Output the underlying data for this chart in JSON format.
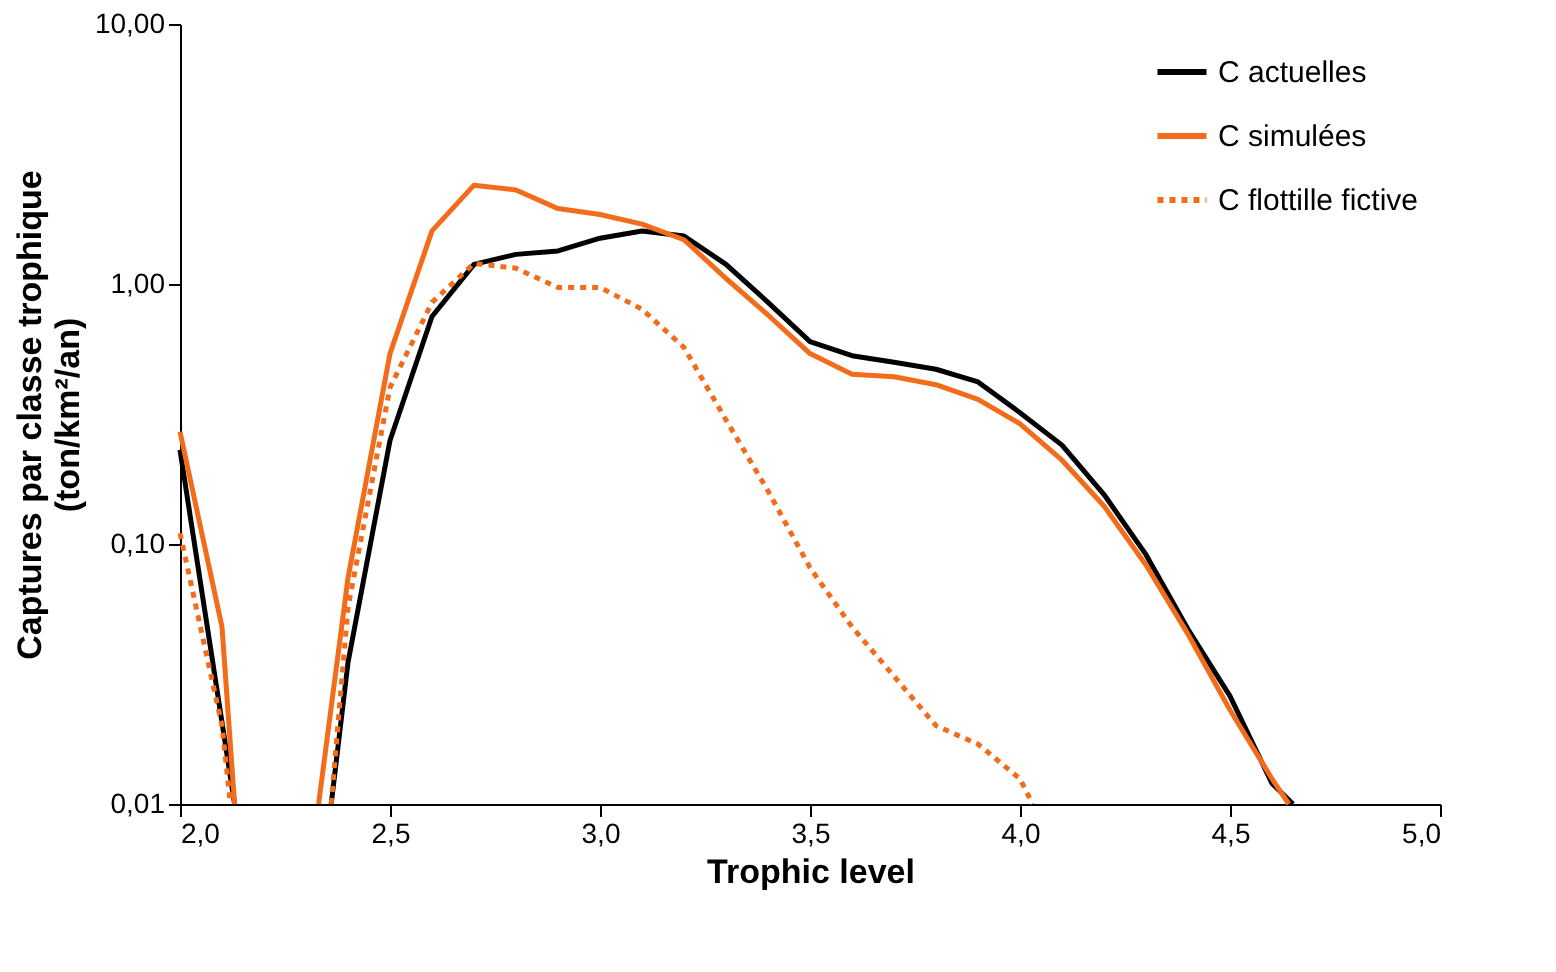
{
  "chart_data": {
    "type": "line",
    "xlabel": "Trophic level",
    "ylabel": "Captures par classe trophique\n(ton/km²/an)",
    "log": "y",
    "grid": false,
    "legend": "top right",
    "marker": "none",
    "xlim": [
      2.0,
      5.0
    ],
    "xticks": [
      {
        "value": 2.0,
        "label": "2,0"
      },
      {
        "value": 2.5,
        "label": "2,5"
      },
      {
        "value": 3.0,
        "label": "3,0"
      },
      {
        "value": 3.5,
        "label": "3,5"
      },
      {
        "value": 4.0,
        "label": "4,0"
      },
      {
        "value": 4.5,
        "label": "4,5"
      },
      {
        "value": 5.0,
        "label": "5,0"
      }
    ],
    "ylim": [
      0.01,
      10
    ],
    "yticks": [
      {
        "value": 0.01,
        "label": "0,01"
      },
      {
        "value": 0.1,
        "label": "0,10"
      },
      {
        "value": 1,
        "label": "1,00"
      },
      {
        "value": 10,
        "label": "10,00"
      }
    ],
    "series": [
      {
        "name": "C actuelles",
        "color": "#000000",
        "line_style": "solid",
        "x": [
          2.0,
          2.13,
          2.2,
          2.36,
          2.4,
          2.5,
          2.6,
          2.7,
          2.8,
          2.9,
          3.0,
          3.1,
          3.2,
          3.3,
          3.4,
          3.5,
          3.6,
          3.7,
          3.8,
          3.9,
          4.0,
          4.1,
          4.2,
          4.3,
          4.4,
          4.5,
          4.6,
          4.65
        ],
        "values": [
          0.23,
          0.01,
          null,
          0.01,
          0.035,
          0.25,
          0.75,
          1.19,
          1.3,
          1.34,
          1.5,
          1.6,
          1.53,
          1.19,
          0.85,
          0.6,
          0.53,
          0.5,
          0.47,
          0.42,
          0.32,
          0.24,
          0.155,
          0.091,
          0.047,
          0.026,
          0.012,
          0.01
        ]
      },
      {
        "name": "C simulées",
        "color": "#f26c1b",
        "line_style": "solid",
        "x": [
          2.0,
          2.1,
          2.13,
          2.2,
          2.33,
          2.4,
          2.5,
          2.6,
          2.7,
          2.8,
          2.9,
          3.0,
          3.1,
          3.2,
          3.3,
          3.4,
          3.5,
          3.6,
          3.7,
          3.8,
          3.9,
          4.0,
          4.1,
          4.2,
          4.3,
          4.4,
          4.5,
          4.6,
          4.64
        ],
        "values": [
          0.27,
          0.048,
          0.01,
          null,
          0.01,
          0.074,
          0.54,
          1.6,
          2.4,
          2.3,
          1.95,
          1.85,
          1.7,
          1.48,
          1.05,
          0.76,
          0.54,
          0.45,
          0.44,
          0.41,
          0.36,
          0.29,
          0.21,
          0.14,
          0.083,
          0.045,
          0.023,
          0.0125,
          0.01
        ]
      },
      {
        "name": "C flottille fictive",
        "color": "#f26c1b",
        "line_style": "dotted",
        "x": [
          2.0,
          2.1,
          2.12,
          2.2,
          2.36,
          2.4,
          2.5,
          2.6,
          2.7,
          2.8,
          2.9,
          3.0,
          3.1,
          3.2,
          3.3,
          3.4,
          3.5,
          3.6,
          3.7,
          3.8,
          3.9,
          4.0,
          4.03
        ],
        "values": [
          0.11,
          0.02,
          0.01,
          null,
          0.01,
          0.057,
          0.4,
          0.85,
          1.2,
          1.15,
          0.97,
          0.97,
          0.8,
          0.57,
          0.3,
          0.16,
          0.081,
          0.048,
          0.031,
          0.02,
          0.017,
          0.0125,
          0.01
        ]
      }
    ]
  }
}
